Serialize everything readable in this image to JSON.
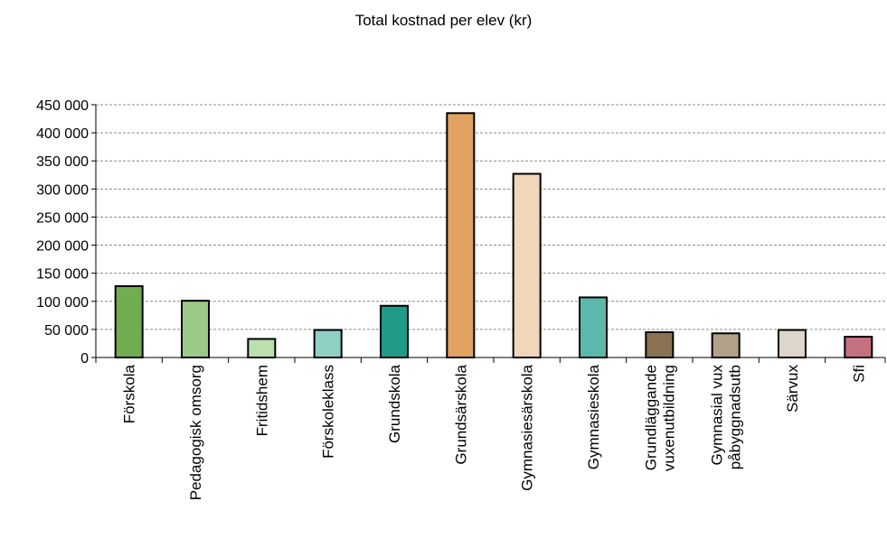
{
  "chart_data": {
    "type": "bar",
    "title": "Total kostnad per elev (kr)",
    "xlabel": "",
    "ylabel": "",
    "ylim": [
      0,
      450000
    ],
    "y_ticks": [
      "0",
      "50 000",
      "100 000",
      "150 000",
      "200 000",
      "250 000",
      "300 000",
      "350 000",
      "400 000",
      "450 000"
    ],
    "grid": true,
    "legend": "none",
    "categories": [
      [
        "Förskola"
      ],
      [
        "Pedagogisk omsorg"
      ],
      [
        "Fritidshem"
      ],
      [
        "Förskoleklass"
      ],
      [
        "Grundskola"
      ],
      [
        "Grundsärskola"
      ],
      [
        "Gymnasiesärskola"
      ],
      [
        "Gymnasieskola"
      ],
      [
        "Grundläggande",
        "vuxenutbildning"
      ],
      [
        "Gymnasial vux",
        "påbyggnadsutb"
      ],
      [
        "Särvux"
      ],
      [
        "Sfi"
      ]
    ],
    "values": [
      127000,
      101000,
      33000,
      49000,
      92000,
      435000,
      327000,
      107000,
      45000,
      43000,
      49000,
      37000
    ],
    "colors": [
      "#6fad4f",
      "#9bc987",
      "#bcdfae",
      "#8fd0c4",
      "#1f9b87",
      "#e2a362",
      "#f3d5b9",
      "#5cb8aa",
      "#8a7352",
      "#b3a08a",
      "#ddd6cb",
      "#c4707f"
    ]
  }
}
